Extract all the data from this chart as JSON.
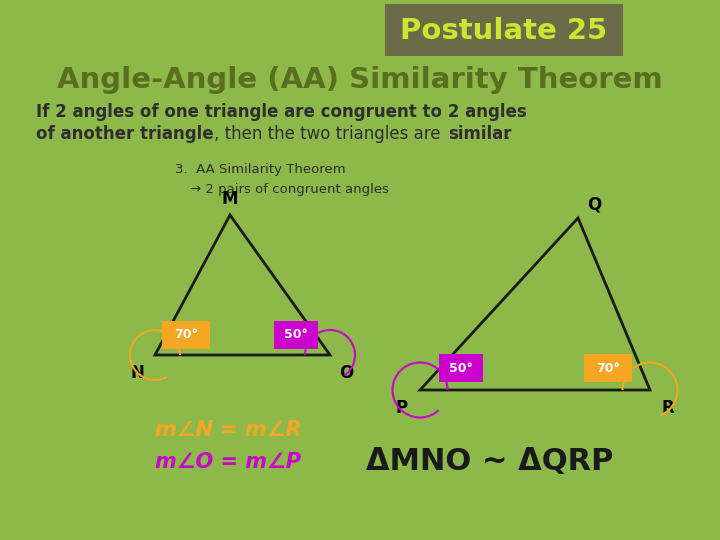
{
  "bg_outer": "#8db84a",
  "bg_inner": "#ffffff",
  "title_box_color": "#6b6b47",
  "title_text": "Postulate 25",
  "title_text_color": "#c8e632",
  "heading_text": "Angle-Angle (AA) Similarity Theorem",
  "heading_color": "#5a6e1f",
  "body_color": "#2e2e2e",
  "annotation_line1": "3.  AA Similarity Theorem",
  "annotation_line2": "→ 2 pairs of congruent angles",
  "annotation_color": "#2e2e2e",
  "angle70_color": "#f5a623",
  "angle50_color": "#cc00cc",
  "angle70_label": "70°",
  "angle50_label": "50°",
  "eq1_text": "m∠N = m∠R",
  "eq1_color": "#f5a623",
  "eq2_text": "m∠O = m∠P",
  "eq2_color": "#cc00cc",
  "similarity_text": "ΔMNO ~ ΔQRP",
  "similarity_color": "#1a1a1a",
  "tri_color": "#1a1a1a"
}
